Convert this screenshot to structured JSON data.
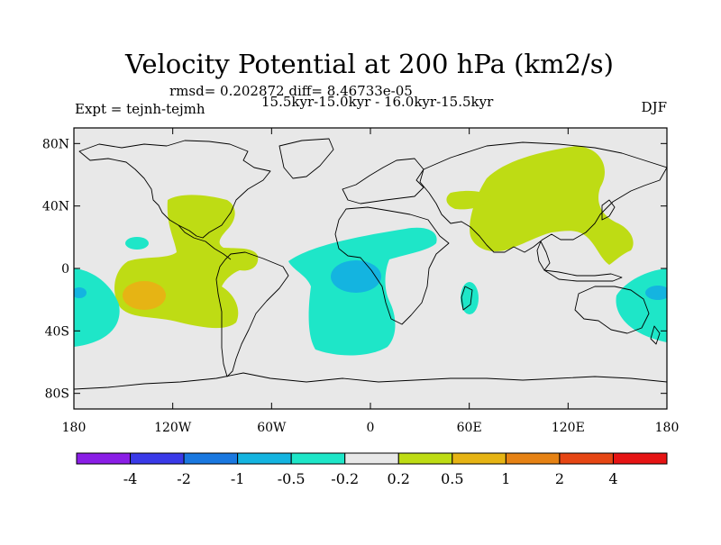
{
  "chart_data": {
    "type": "heatmap",
    "title": "Velocity Potential at 200 hPa (km2/s)",
    "rmsd_line": "rmsd= 0.202872 diff= 8.46733e-05",
    "period_line": "15.5kyr-15.0kyr - 16.0kyr-15.5kyr",
    "left_label": "Expt = tejnh-tejmh",
    "right_label": "DJF",
    "x_ticks": [
      "180",
      "120W",
      "60W",
      "0",
      "60E",
      "120E",
      "180"
    ],
    "y_ticks": [
      "80N",
      "40N",
      "0",
      "40S",
      "80S"
    ],
    "xlim": [
      -180,
      180
    ],
    "ylim": [
      -90,
      90
    ],
    "colorbar": {
      "labels": [
        "-4",
        "-2",
        "-1",
        "-0.5",
        "-0.2",
        "0.2",
        "0.5",
        "1",
        "2",
        "4"
      ],
      "colors": [
        "#8a1ee6",
        "#3a3ae8",
        "#1a78e0",
        "#14b4e0",
        "#1ee6c8",
        "#e8e8e8",
        "#bedc14",
        "#e6b414",
        "#e68214",
        "#e64614",
        "#e61414"
      ]
    },
    "colors": {
      "background_level": "#e8e8e8",
      "neg_0_2_to_0_5": "#1ee6c8",
      "neg_0_5_to_1": "#14b4e0",
      "pos_0_2_to_0_5": "#bedc14",
      "pos_0_5_to_1": "#e6b414"
    }
  }
}
